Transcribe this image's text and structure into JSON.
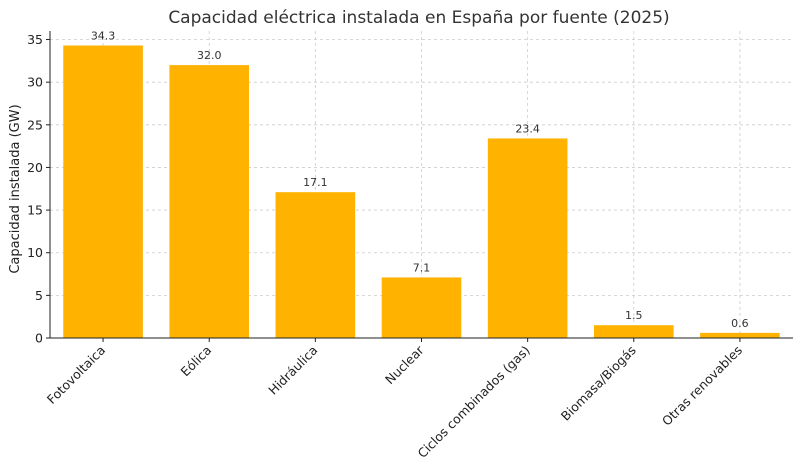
{
  "chart_data": {
    "type": "bar",
    "title": "Capacidad eléctrica instalada en España por fuente (2025)",
    "xlabel": "",
    "ylabel": "Capacidad instalada (GW)",
    "categories": [
      "Fotovoltaica",
      "Eólica",
      "Hidráulica",
      "Nuclear",
      "Ciclos combinados (gas)",
      "Biomasa/Biogás",
      "Otras renovables"
    ],
    "values": [
      34.3,
      32.0,
      17.1,
      7.1,
      23.4,
      1.5,
      0.6
    ],
    "data_labels": [
      "34.3",
      "32.0",
      "17.1",
      "7.1",
      "23.4",
      "1.5",
      "0.6"
    ],
    "ylim": [
      0,
      36
    ],
    "yticks": [
      0,
      5,
      10,
      15,
      20,
      25,
      30,
      35
    ],
    "grid": true,
    "legend": "none",
    "bar_color": "#FFB300"
  }
}
